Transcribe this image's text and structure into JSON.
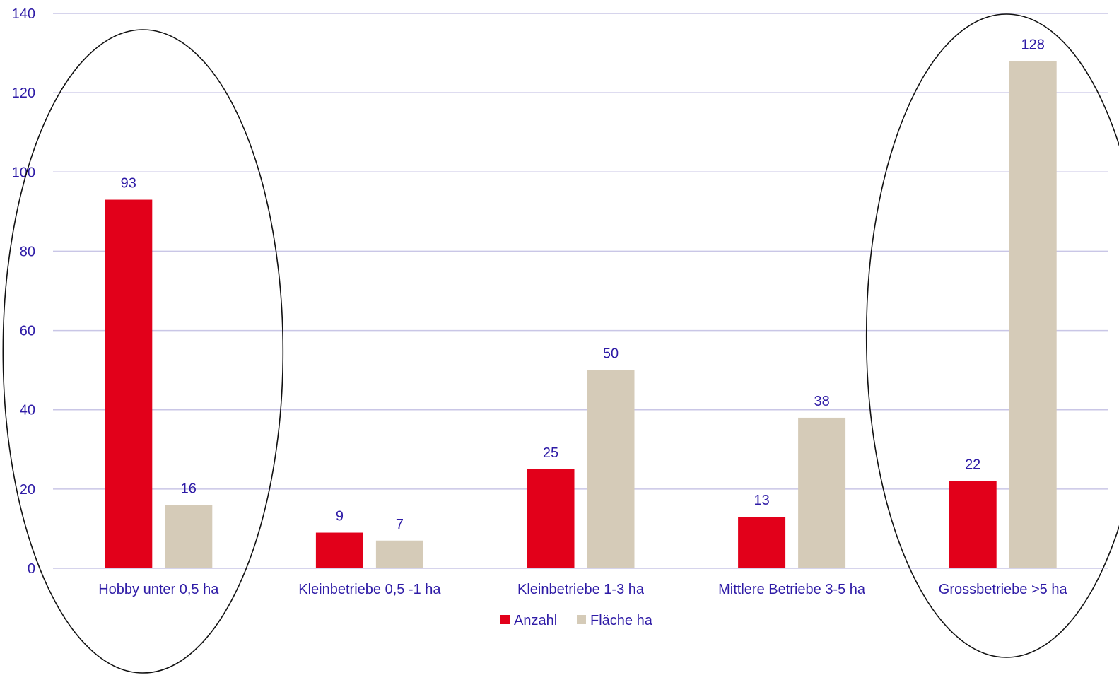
{
  "chart_data": {
    "type": "bar",
    "title": "",
    "xlabel": "",
    "ylabel": "",
    "categories": [
      "Hobby unter 0,5 ha",
      "Kleinbetriebe 0,5 -1 ha",
      "Kleinbetriebe 1-3 ha",
      "Mittlere Betriebe 3-5 ha",
      "Grossbetriebe >5 ha"
    ],
    "series": [
      {
        "name": "Anzahl",
        "color": "#E2001A",
        "values": [
          93,
          9,
          25,
          13,
          22
        ]
      },
      {
        "name": "Fläche ha",
        "color": "#D5CBB8",
        "values": [
          16,
          7,
          50,
          38,
          128
        ]
      }
    ],
    "ylim": [
      0,
      140
    ],
    "yticks": [
      0,
      20,
      40,
      60,
      80,
      100,
      120,
      140
    ],
    "grid": true,
    "legend_position": "bottom",
    "data_labels": true,
    "annotations": [
      {
        "type": "ellipse",
        "highlights_category": "Hobby unter 0,5 ha"
      },
      {
        "type": "ellipse",
        "highlights_category": "Grossbetriebe >5 ha"
      }
    ],
    "text_color": "#2E1BA6",
    "gridline_color": "#C9C6E6"
  }
}
